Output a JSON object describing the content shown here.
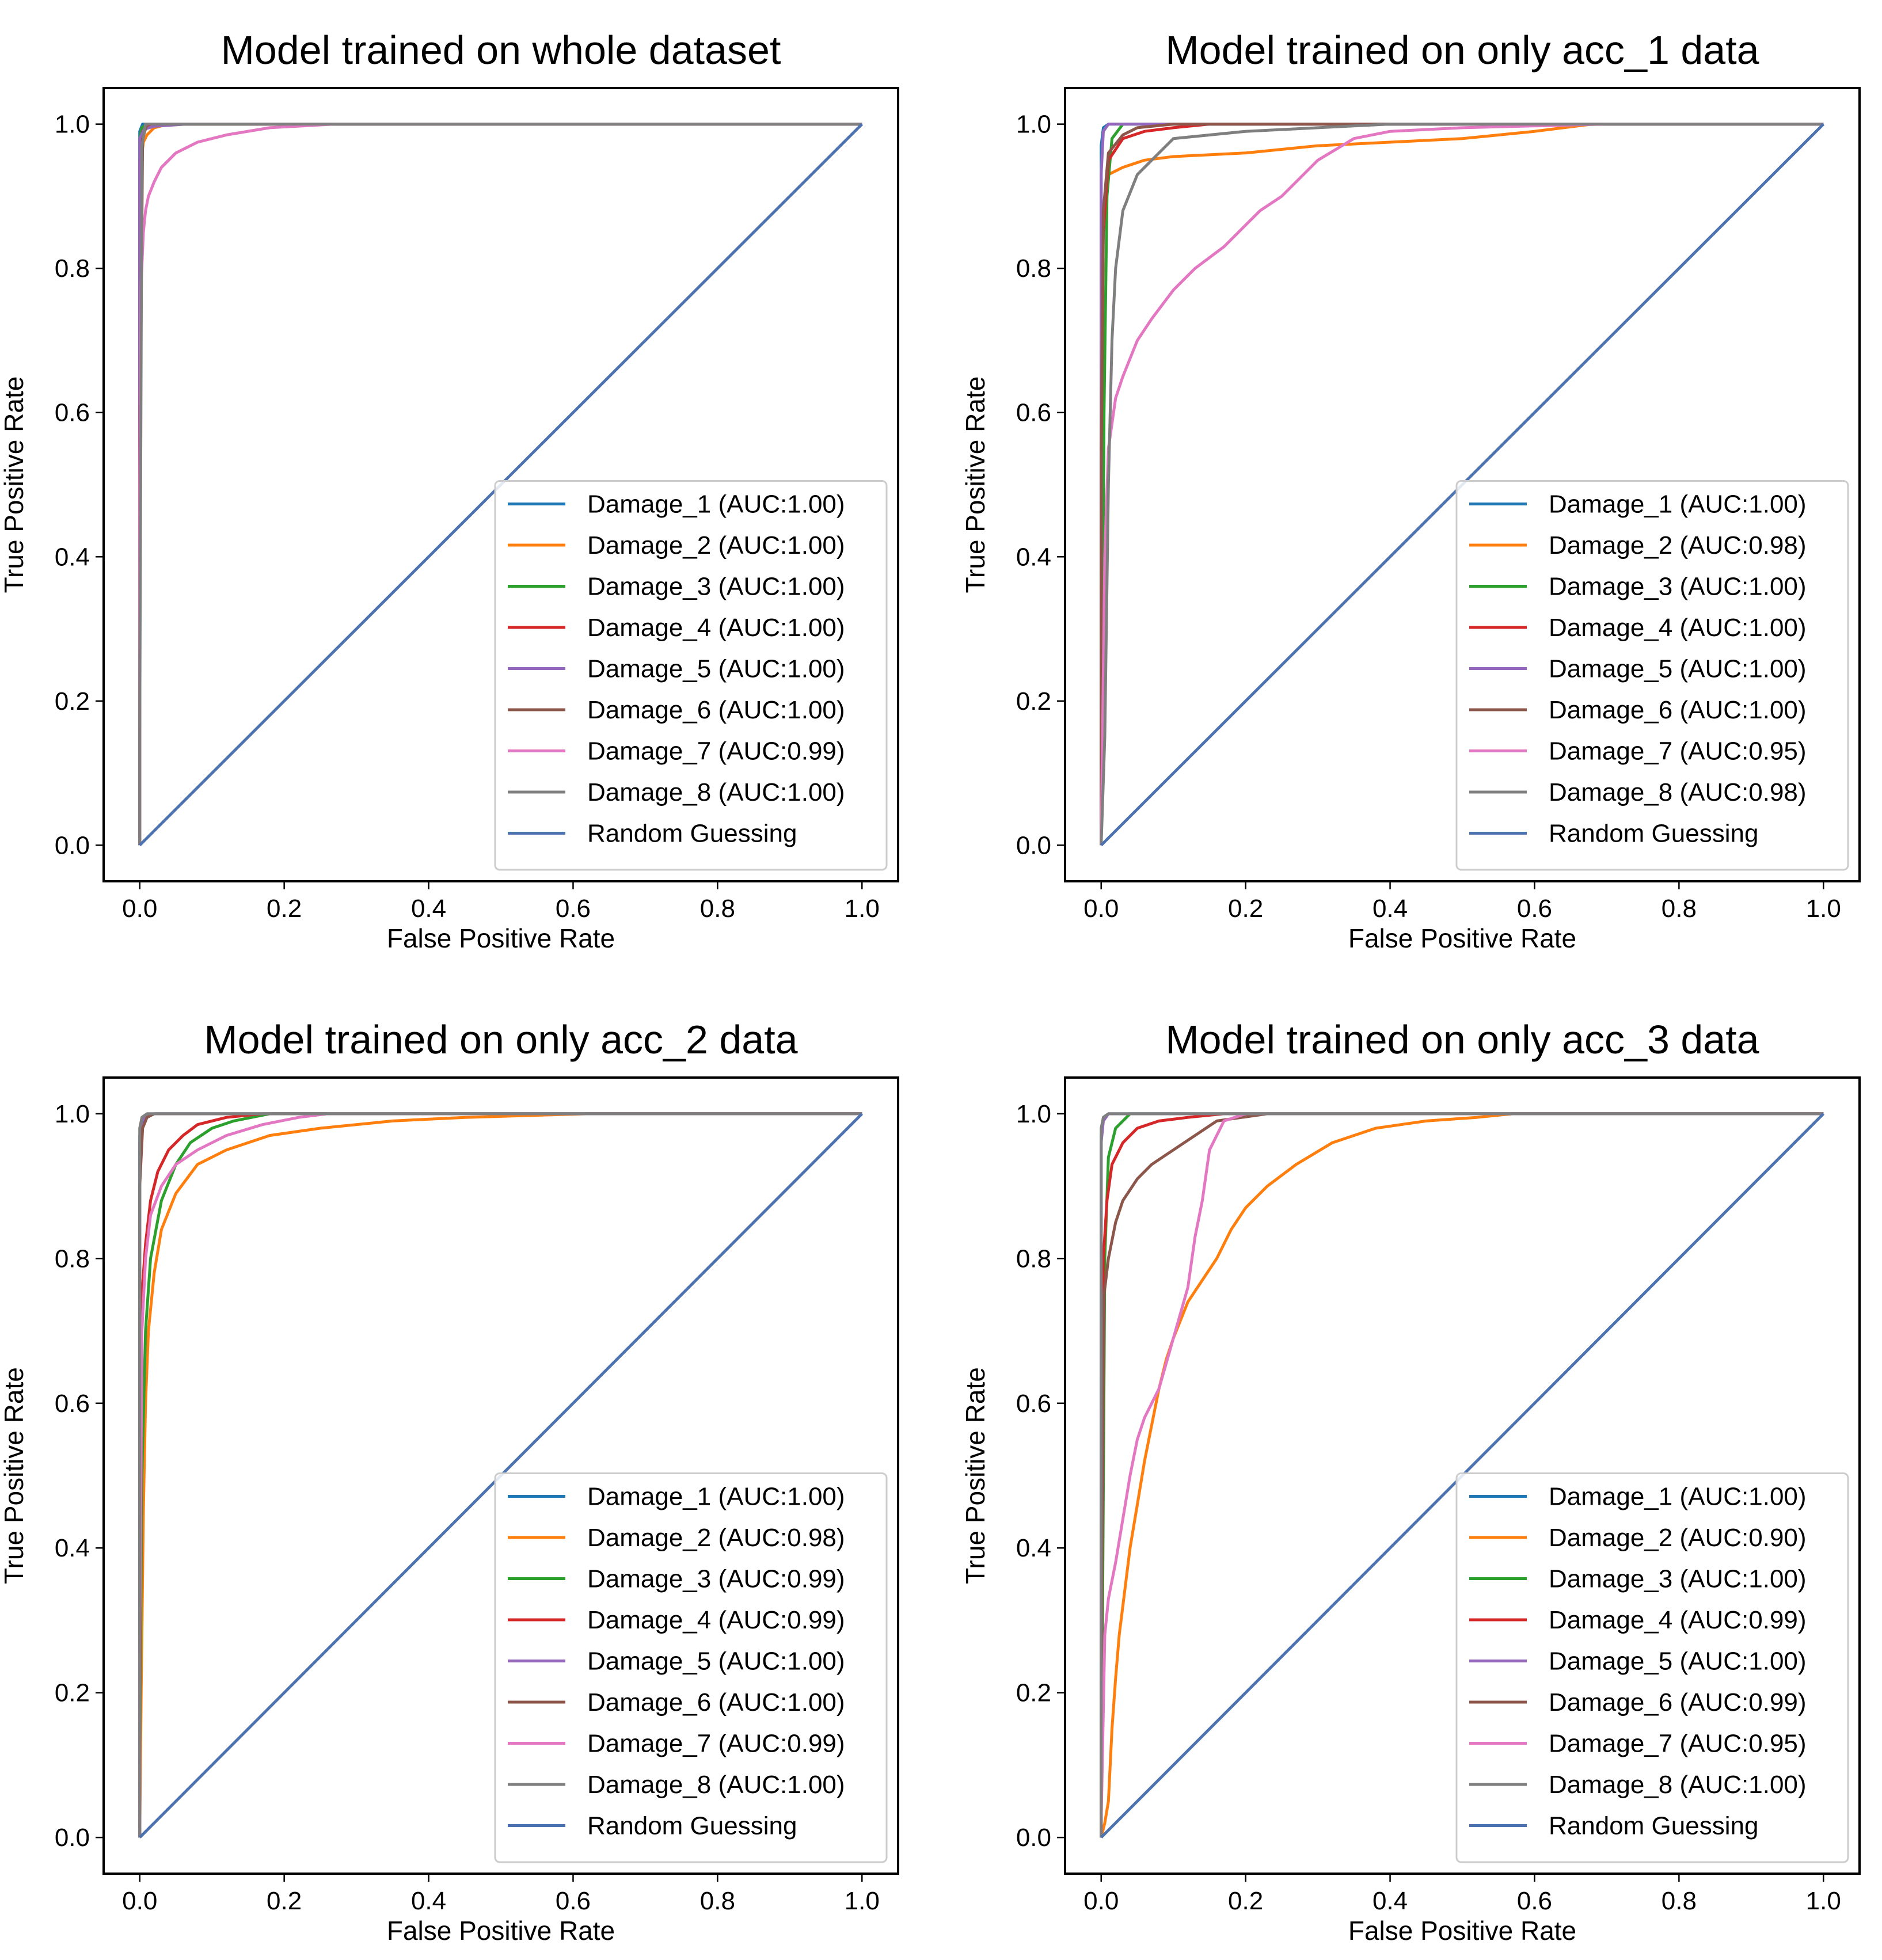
{
  "colors": {
    "Damage_1": "#1f77b4",
    "Damage_2": "#ff7f0e",
    "Damage_3": "#2ca02c",
    "Damage_4": "#d62728",
    "Damage_5": "#9467bd",
    "Damage_6": "#8c564b",
    "Damage_7": "#e377c2",
    "Damage_8": "#7f7f7f",
    "Random": "#4c72b0"
  },
  "chart_data": [
    {
      "type": "line",
      "title": "Model trained on whole dataset",
      "xlabel": "False Positive Rate",
      "ylabel": "True Positive Rate",
      "xlim": [
        -0.05,
        1.05
      ],
      "ylim": [
        -0.05,
        1.05
      ],
      "xticks": [
        "0.0",
        "0.2",
        "0.4",
        "0.6",
        "0.8",
        "1.0"
      ],
      "yticks": [
        "0.0",
        "0.2",
        "0.4",
        "0.6",
        "0.8",
        "1.0"
      ],
      "legend_position": "lower-right",
      "series": [
        {
          "key": "Damage_1",
          "name": "Damage_1 (AUC:1.00)",
          "x": [
            0,
            0.0,
            0.004,
            0.02,
            1.0
          ],
          "y": [
            0,
            0.99,
            1.0,
            1.0,
            1.0
          ]
        },
        {
          "key": "Damage_2",
          "name": "Damage_2 (AUC:1.00)",
          "x": [
            0,
            0.0,
            0.002,
            0.005,
            0.01,
            0.02,
            0.04,
            1.0
          ],
          "y": [
            0,
            0.8,
            0.95,
            0.975,
            0.985,
            0.995,
            1.0,
            1.0
          ]
        },
        {
          "key": "Damage_3",
          "name": "Damage_3 (AUC:1.00)",
          "x": [
            0,
            0.0,
            0.003,
            0.01,
            1.0
          ],
          "y": [
            0,
            0.98,
            0.995,
            1.0,
            1.0
          ]
        },
        {
          "key": "Damage_4",
          "name": "Damage_4 (AUC:1.00)",
          "x": [
            0,
            0.0,
            0.004,
            0.015,
            1.0
          ],
          "y": [
            0,
            0.95,
            0.99,
            1.0,
            1.0
          ]
        },
        {
          "key": "Damage_5",
          "name": "Damage_5 (AUC:1.00)",
          "x": [
            0,
            0.0,
            0.006,
            0.02,
            0.065,
            1.0
          ],
          "y": [
            0,
            0.98,
            0.993,
            0.997,
            1.0,
            1.0
          ]
        },
        {
          "key": "Damage_6",
          "name": "Damage_6 (AUC:1.00)",
          "x": [
            0,
            0.0,
            0.004,
            0.01,
            1.0
          ],
          "y": [
            0,
            0.5,
            0.98,
            1.0,
            1.0
          ]
        },
        {
          "key": "Damage_7",
          "name": "Damage_7 (AUC:0.99)",
          "x": [
            0,
            0.0,
            0.002,
            0.005,
            0.008,
            0.012,
            0.02,
            0.03,
            0.05,
            0.08,
            0.12,
            0.18,
            0.27,
            1.0
          ],
          "y": [
            0,
            0.5,
            0.78,
            0.85,
            0.88,
            0.9,
            0.92,
            0.94,
            0.96,
            0.975,
            0.985,
            0.995,
            1.0,
            1.0
          ]
        },
        {
          "key": "Damage_8",
          "name": "Damage_8 (AUC:1.00)",
          "x": [
            0,
            0.0,
            0.003,
            0.008,
            1.0
          ],
          "y": [
            0,
            0.15,
            0.97,
            1.0,
            1.0
          ]
        },
        {
          "key": "Random",
          "name": "Random Guessing",
          "x": [
            0,
            1
          ],
          "y": [
            0,
            1
          ]
        }
      ]
    },
    {
      "type": "line",
      "title": "Model trained on only acc_1 data",
      "xlabel": "False Positive Rate",
      "ylabel": "True Positive Rate",
      "xlim": [
        -0.05,
        1.05
      ],
      "ylim": [
        -0.05,
        1.05
      ],
      "xticks": [
        "0.0",
        "0.2",
        "0.4",
        "0.6",
        "0.8",
        "1.0"
      ],
      "yticks": [
        "0.0",
        "0.2",
        "0.4",
        "0.6",
        "0.8",
        "1.0"
      ],
      "legend_position": "lower-right",
      "series": [
        {
          "key": "Damage_1",
          "name": "Damage_1 (AUC:1.00)",
          "x": [
            0,
            0.0,
            0.003,
            0.01,
            1.0
          ],
          "y": [
            0,
            0.97,
            0.995,
            1.0,
            1.0
          ]
        },
        {
          "key": "Damage_2",
          "name": "Damage_2 (AUC:0.98)",
          "x": [
            0,
            0.0,
            0.005,
            0.01,
            0.03,
            0.06,
            0.1,
            0.2,
            0.3,
            0.4,
            0.5,
            0.6,
            0.68,
            1.0
          ],
          "y": [
            0,
            0.85,
            0.9,
            0.93,
            0.94,
            0.95,
            0.955,
            0.96,
            0.97,
            0.975,
            0.98,
            0.99,
            1.0,
            1.0
          ]
        },
        {
          "key": "Damage_3",
          "name": "Damage_3 (AUC:1.00)",
          "x": [
            0,
            0.0,
            0.004,
            0.008,
            0.015,
            0.03,
            1.0
          ],
          "y": [
            0,
            0.0,
            0.6,
            0.9,
            0.98,
            1.0,
            1.0
          ]
        },
        {
          "key": "Damage_4",
          "name": "Damage_4 (AUC:1.00)",
          "x": [
            0,
            0.0,
            0.003,
            0.01,
            0.03,
            0.06,
            0.1,
            0.15,
            1.0
          ],
          "y": [
            0,
            0.53,
            0.85,
            0.95,
            0.98,
            0.99,
            0.995,
            1.0,
            1.0
          ]
        },
        {
          "key": "Damage_5",
          "name": "Damage_5 (AUC:1.00)",
          "x": [
            0,
            0.0,
            0.003,
            0.01,
            1.0
          ],
          "y": [
            0,
            0.93,
            0.99,
            1.0,
            1.0
          ]
        },
        {
          "key": "Damage_6",
          "name": "Damage_6 (AUC:1.00)",
          "x": [
            0,
            0.0,
            0.003,
            0.01,
            0.03,
            0.05,
            0.1,
            1.0
          ],
          "y": [
            0,
            0.55,
            0.88,
            0.96,
            0.985,
            0.995,
            1.0,
            1.0
          ]
        },
        {
          "key": "Damage_7",
          "name": "Damage_7 (AUC:0.95)",
          "x": [
            0,
            0.0,
            0.005,
            0.01,
            0.02,
            0.03,
            0.05,
            0.07,
            0.1,
            0.13,
            0.17,
            0.2,
            0.22,
            0.25,
            0.3,
            0.35,
            0.4,
            0.5,
            0.7,
            1.0
          ],
          "y": [
            0,
            0.0,
            0.4,
            0.55,
            0.62,
            0.65,
            0.7,
            0.73,
            0.77,
            0.8,
            0.83,
            0.86,
            0.88,
            0.9,
            0.95,
            0.98,
            0.99,
            0.995,
            1.0,
            1.0
          ]
        },
        {
          "key": "Damage_8",
          "name": "Damage_8 (AUC:0.98)",
          "x": [
            0,
            0.0,
            0.005,
            0.01,
            0.015,
            0.02,
            0.03,
            0.05,
            0.08,
            0.1,
            0.2,
            0.3,
            0.4,
            1.0
          ],
          "y": [
            0,
            0.0,
            0.15,
            0.5,
            0.7,
            0.8,
            0.88,
            0.93,
            0.96,
            0.98,
            0.99,
            0.995,
            1.0,
            1.0
          ]
        },
        {
          "key": "Random",
          "name": "Random Guessing",
          "x": [
            0,
            1
          ],
          "y": [
            0,
            1
          ]
        }
      ]
    },
    {
      "type": "line",
      "title": "Model trained on only acc_2 data",
      "xlabel": "False Positive Rate",
      "ylabel": "True Positive Rate",
      "xlim": [
        -0.05,
        1.05
      ],
      "ylim": [
        -0.05,
        1.05
      ],
      "xticks": [
        "0.0",
        "0.2",
        "0.4",
        "0.6",
        "0.8",
        "1.0"
      ],
      "yticks": [
        "0.0",
        "0.2",
        "0.4",
        "0.6",
        "0.8",
        "1.0"
      ],
      "legend_position": "lower-right",
      "series": [
        {
          "key": "Damage_1",
          "name": "Damage_1 (AUC:1.00)",
          "x": [
            0,
            0.0,
            0.005,
            0.01,
            0.02,
            1.0
          ],
          "y": [
            0,
            0.97,
            0.985,
            0.995,
            1.0,
            1.0
          ]
        },
        {
          "key": "Damage_2",
          "name": "Damage_2 (AUC:0.98)",
          "x": [
            0,
            0.0,
            0.002,
            0.005,
            0.008,
            0.012,
            0.02,
            0.03,
            0.05,
            0.08,
            0.12,
            0.18,
            0.25,
            0.35,
            0.45,
            0.62,
            1.0
          ],
          "y": [
            0,
            0.0,
            0.2,
            0.45,
            0.6,
            0.7,
            0.78,
            0.84,
            0.89,
            0.93,
            0.95,
            0.97,
            0.98,
            0.99,
            0.995,
            1.0,
            1.0
          ]
        },
        {
          "key": "Damage_3",
          "name": "Damage_3 (AUC:0.99)",
          "x": [
            0,
            0.0,
            0.003,
            0.008,
            0.015,
            0.03,
            0.05,
            0.07,
            0.1,
            0.13,
            0.18,
            1.0
          ],
          "y": [
            0,
            0.1,
            0.5,
            0.7,
            0.8,
            0.88,
            0.93,
            0.96,
            0.98,
            0.99,
            1.0,
            1.0
          ]
        },
        {
          "key": "Damage_4",
          "name": "Damage_4 (AUC:0.99)",
          "x": [
            0,
            0.0,
            0.003,
            0.008,
            0.015,
            0.025,
            0.04,
            0.06,
            0.08,
            0.12,
            0.17,
            1.0
          ],
          "y": [
            0,
            0.15,
            0.75,
            0.82,
            0.88,
            0.92,
            0.95,
            0.97,
            0.985,
            0.995,
            1.0,
            1.0
          ]
        },
        {
          "key": "Damage_5",
          "name": "Damage_5 (AUC:1.00)",
          "x": [
            0,
            0.0,
            0.003,
            0.01,
            1.0
          ],
          "y": [
            0,
            0.96,
            0.99,
            1.0,
            1.0
          ]
        },
        {
          "key": "Damage_6",
          "name": "Damage_6 (AUC:1.00)",
          "x": [
            0,
            0.0,
            0.004,
            0.01,
            0.02,
            1.0
          ],
          "y": [
            0,
            0.9,
            0.98,
            0.995,
            1.0,
            1.0
          ]
        },
        {
          "key": "Damage_7",
          "name": "Damage_7 (AUC:0.99)",
          "x": [
            0,
            0.0,
            0.003,
            0.008,
            0.015,
            0.03,
            0.05,
            0.08,
            0.12,
            0.17,
            0.22,
            0.26,
            1.0
          ],
          "y": [
            0,
            0.25,
            0.7,
            0.8,
            0.86,
            0.9,
            0.93,
            0.95,
            0.97,
            0.985,
            0.995,
            1.0,
            1.0
          ]
        },
        {
          "key": "Damage_8",
          "name": "Damage_8 (AUC:1.00)",
          "x": [
            0,
            0.0,
            0.003,
            0.01,
            1.0
          ],
          "y": [
            0,
            0.98,
            0.995,
            1.0,
            1.0
          ]
        },
        {
          "key": "Random",
          "name": "Random Guessing",
          "x": [
            0,
            1
          ],
          "y": [
            0,
            1
          ]
        }
      ]
    },
    {
      "type": "line",
      "title": "Model trained on only acc_3 data",
      "xlabel": "False Positive Rate",
      "ylabel": "True Positive Rate",
      "xlim": [
        -0.05,
        1.05
      ],
      "ylim": [
        -0.05,
        1.05
      ],
      "xticks": [
        "0.0",
        "0.2",
        "0.4",
        "0.6",
        "0.8",
        "1.0"
      ],
      "yticks": [
        "0.0",
        "0.2",
        "0.4",
        "0.6",
        "0.8",
        "1.0"
      ],
      "legend_position": "lower-right",
      "series": [
        {
          "key": "Damage_1",
          "name": "Damage_1 (AUC:1.00)",
          "x": [
            0,
            0.0,
            0.003,
            0.01,
            1.0
          ],
          "y": [
            0,
            0.97,
            0.995,
            1.0,
            1.0
          ]
        },
        {
          "key": "Damage_2",
          "name": "Damage_2 (AUC:0.90)",
          "x": [
            0,
            0.0,
            0.005,
            0.01,
            0.015,
            0.02,
            0.025,
            0.03,
            0.04,
            0.05,
            0.06,
            0.07,
            0.08,
            0.09,
            0.1,
            0.12,
            0.14,
            0.16,
            0.18,
            0.2,
            0.23,
            0.27,
            0.32,
            0.38,
            0.45,
            0.52,
            0.57,
            1.0
          ],
          "y": [
            0,
            0.0,
            0.02,
            0.05,
            0.15,
            0.22,
            0.28,
            0.32,
            0.4,
            0.46,
            0.52,
            0.57,
            0.62,
            0.66,
            0.69,
            0.74,
            0.77,
            0.8,
            0.84,
            0.87,
            0.9,
            0.93,
            0.96,
            0.98,
            0.99,
            0.995,
            1.0,
            1.0
          ]
        },
        {
          "key": "Damage_3",
          "name": "Damage_3 (AUC:1.00)",
          "x": [
            0,
            0.0,
            0.005,
            0.01,
            0.02,
            0.04,
            1.0
          ],
          "y": [
            0,
            0.0,
            0.8,
            0.94,
            0.98,
            1.0,
            1.0
          ]
        },
        {
          "key": "Damage_4",
          "name": "Damage_4 (AUC:0.99)",
          "x": [
            0,
            0.0,
            0.003,
            0.008,
            0.015,
            0.03,
            0.05,
            0.08,
            0.12,
            0.17,
            1.0
          ],
          "y": [
            0,
            0.4,
            0.8,
            0.88,
            0.93,
            0.96,
            0.98,
            0.99,
            0.995,
            1.0,
            1.0
          ]
        },
        {
          "key": "Damage_5",
          "name": "Damage_5 (AUC:1.00)",
          "x": [
            0,
            0.0,
            0.003,
            0.01,
            1.0
          ],
          "y": [
            0,
            0.96,
            0.99,
            1.0,
            1.0
          ]
        },
        {
          "key": "Damage_6",
          "name": "Damage_6 (AUC:0.99)",
          "x": [
            0,
            0.0,
            0.004,
            0.01,
            0.02,
            0.03,
            0.05,
            0.07,
            0.1,
            0.13,
            0.16,
            0.23,
            1.0
          ],
          "y": [
            0,
            0.15,
            0.75,
            0.8,
            0.85,
            0.88,
            0.91,
            0.93,
            0.95,
            0.97,
            0.99,
            1.0,
            1.0
          ]
        },
        {
          "key": "Damage_7",
          "name": "Damage_7 (AUC:0.95)",
          "x": [
            0,
            0.0,
            0.005,
            0.01,
            0.02,
            0.03,
            0.04,
            0.05,
            0.06,
            0.08,
            0.1,
            0.12,
            0.13,
            0.14,
            0.15,
            0.17,
            0.2,
            1.0
          ],
          "y": [
            0,
            0.02,
            0.28,
            0.33,
            0.38,
            0.44,
            0.5,
            0.55,
            0.58,
            0.62,
            0.69,
            0.76,
            0.83,
            0.88,
            0.95,
            0.99,
            1.0,
            1.0
          ]
        },
        {
          "key": "Damage_8",
          "name": "Damage_8 (AUC:1.00)",
          "x": [
            0,
            0.0,
            0.003,
            0.01,
            1.0
          ],
          "y": [
            0,
            0.98,
            0.995,
            1.0,
            1.0
          ]
        },
        {
          "key": "Random",
          "name": "Random Guessing",
          "x": [
            0,
            1
          ],
          "y": [
            0,
            1
          ]
        }
      ]
    }
  ]
}
